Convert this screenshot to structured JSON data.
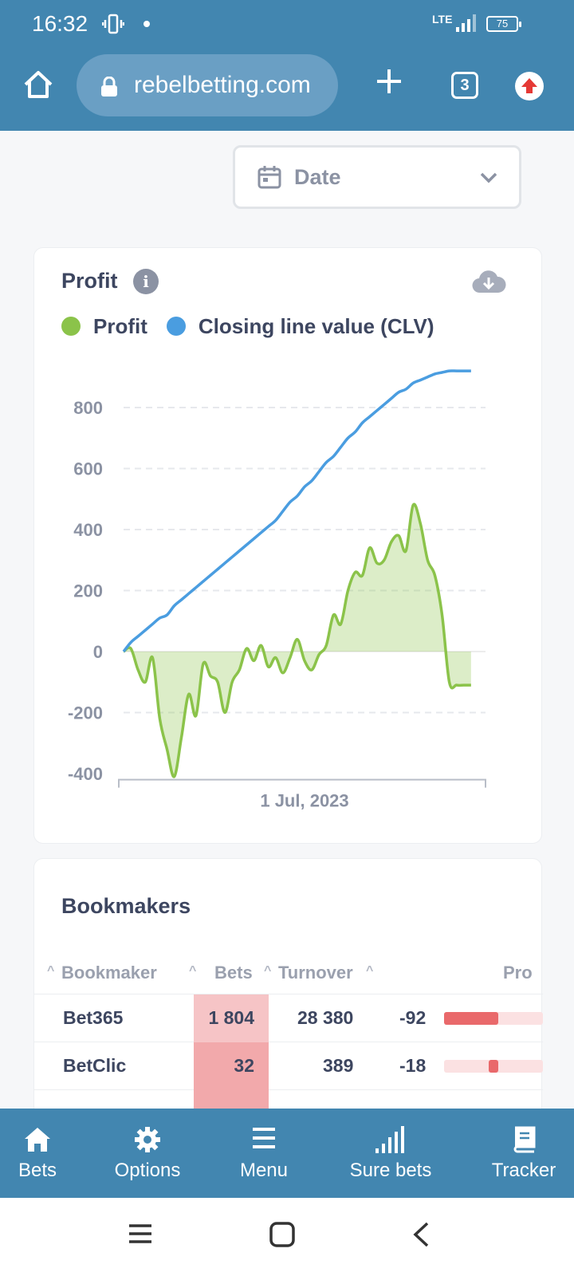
{
  "status_bar": {
    "time": "16:32",
    "network": "LTE",
    "battery": "75"
  },
  "browser": {
    "url": "rebelbetting.com",
    "tab_count": "3"
  },
  "filter": {
    "date_label": "Date"
  },
  "profit_card": {
    "title": "Profit",
    "legend": [
      {
        "label": "Profit",
        "color": "#8bc34a"
      },
      {
        "label": "Closing line value (CLV)",
        "color": "#4a9de0"
      }
    ]
  },
  "chart_data": {
    "type": "line",
    "title": "Profit",
    "x_tick_labels": [
      "1 Jul, 2023"
    ],
    "y_ticks": [
      800,
      600,
      400,
      200,
      0,
      -200,
      -400
    ],
    "ylim": [
      -420,
      920
    ],
    "grid": "horizontal dashed",
    "x": [
      0,
      2,
      4,
      6,
      8,
      10,
      12,
      14,
      16,
      18,
      20,
      22,
      24,
      26,
      28,
      30,
      32,
      34,
      36,
      38,
      40,
      42,
      44,
      46,
      48,
      50,
      52,
      54,
      56,
      58,
      60,
      62,
      64,
      66,
      68,
      70,
      72,
      74,
      76,
      78,
      80,
      82,
      84,
      86,
      88,
      90,
      92,
      94,
      96,
      98,
      100
    ],
    "series": [
      {
        "name": "Profit",
        "color": "#8bc34a",
        "values": [
          0,
          10,
          -60,
          -100,
          -20,
          -220,
          -320,
          -410,
          -280,
          -140,
          -210,
          -40,
          -80,
          -100,
          -200,
          -100,
          -60,
          10,
          -30,
          20,
          -50,
          -20,
          -70,
          -20,
          40,
          -30,
          -60,
          -10,
          20,
          120,
          90,
          200,
          260,
          250,
          340,
          290,
          300,
          360,
          380,
          330,
          480,
          420,
          300,
          250,
          120,
          -100,
          -110,
          -110,
          -110,
          -110,
          -110
        ]
      },
      {
        "name": "Closing line value (CLV)",
        "color": "#4a9de0",
        "values": [
          0,
          30,
          50,
          70,
          90,
          110,
          120,
          150,
          170,
          190,
          210,
          230,
          250,
          270,
          290,
          310,
          330,
          350,
          370,
          390,
          410,
          430,
          460,
          490,
          510,
          540,
          560,
          590,
          620,
          640,
          670,
          700,
          720,
          750,
          770,
          790,
          810,
          830,
          850,
          860,
          880,
          890,
          900,
          910,
          915,
          920,
          920,
          920,
          920,
          920,
          920
        ]
      }
    ]
  },
  "bookmakers": {
    "title": "Bookmakers",
    "columns": [
      "Bookmaker",
      "Bets",
      "Turnover",
      "Pro"
    ],
    "rows": [
      {
        "name": "Bet365",
        "bets": "1 804",
        "turnover": "28 380",
        "profit": "-92",
        "bets_color": "#f6c4c6",
        "profit_fraction": 0.55,
        "bar_side": "left"
      },
      {
        "name": "BetClic",
        "bets": "32",
        "turnover": "389",
        "profit": "-18",
        "bets_color": "#f2a9ab",
        "profit_fraction": 0.1,
        "bar_side": "near-right"
      }
    ]
  },
  "bottom_nav": [
    {
      "label": "Bets",
      "icon": "home-icon"
    },
    {
      "label": "Options",
      "icon": "gear-icon"
    },
    {
      "label": "Menu",
      "icon": "menu-icon"
    },
    {
      "label": "Sure bets",
      "icon": "signal-bars-icon"
    },
    {
      "label": "Tracker",
      "icon": "book-icon"
    }
  ]
}
